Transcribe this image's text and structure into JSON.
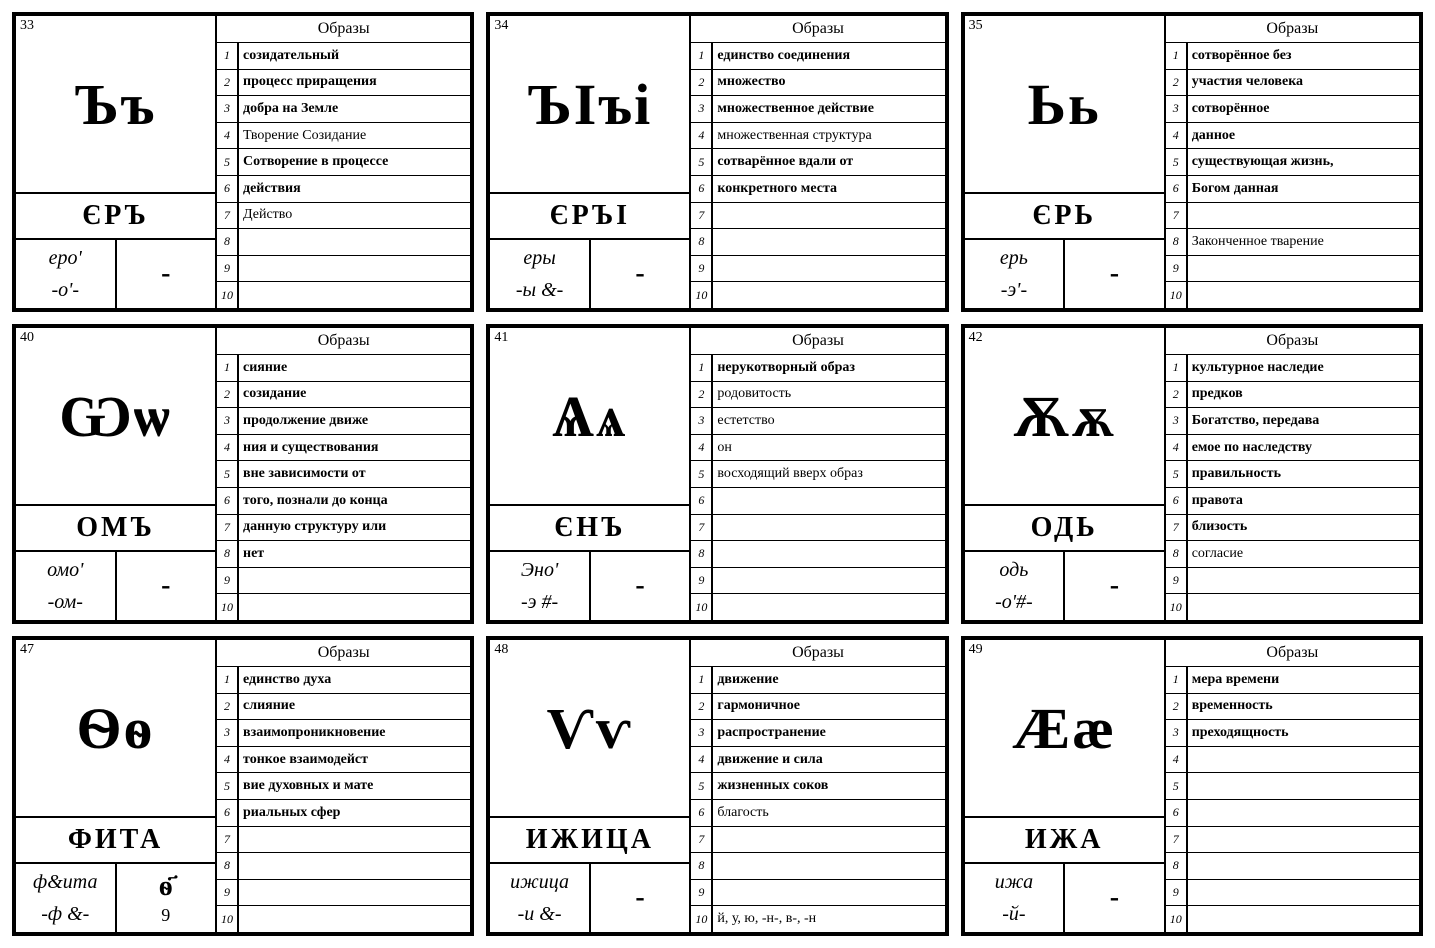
{
  "header_label": "Образы",
  "cards": [
    {
      "num": "33",
      "glyph": "Ъъ",
      "name": "ЄРЪ",
      "trans1": "еро'",
      "trans2": "-о'-",
      "numeral": "-",
      "numeral_sub": "",
      "meanings": [
        {
          "t": "созидательный",
          "b": true
        },
        {
          "t": "процесс приращения",
          "b": true
        },
        {
          "t": "добра на Земле",
          "b": true
        },
        {
          "t": "Творение Созидание",
          "b": false
        },
        {
          "t": "Сотворение в процессе",
          "b": true
        },
        {
          "t": "действия",
          "b": true
        },
        {
          "t": "Действо",
          "b": false
        },
        {
          "t": "",
          "b": false
        },
        {
          "t": "",
          "b": false
        },
        {
          "t": "",
          "b": false
        }
      ]
    },
    {
      "num": "34",
      "glyph": "ЪІъі",
      "name": "ЄРЪІ",
      "trans1": "еры",
      "trans2": "-ы &-",
      "numeral": "-",
      "numeral_sub": "",
      "meanings": [
        {
          "t": "единство соединения",
          "b": true
        },
        {
          "t": "множество",
          "b": true
        },
        {
          "t": "множественное действие",
          "b": true
        },
        {
          "t": "множественная структура",
          "b": false
        },
        {
          "t": "сотварённое вдали от",
          "b": true
        },
        {
          "t": "конкретного места",
          "b": true
        },
        {
          "t": "",
          "b": false
        },
        {
          "t": "",
          "b": false
        },
        {
          "t": "",
          "b": false
        },
        {
          "t": "",
          "b": false
        }
      ]
    },
    {
      "num": "35",
      "glyph": "Ьь",
      "name": "ЄРЬ",
      "trans1": "ерь",
      "trans2": "-э'-",
      "numeral": "-",
      "numeral_sub": "",
      "meanings": [
        {
          "t": "сотворённое без",
          "b": true
        },
        {
          "t": "участия человека",
          "b": true
        },
        {
          "t": "сотворённое",
          "b": true
        },
        {
          "t": "данное",
          "b": true
        },
        {
          "t": "существующая жизнь,",
          "b": true
        },
        {
          "t": "Богом данная",
          "b": true
        },
        {
          "t": "",
          "b": false
        },
        {
          "t": "Законченное тварение",
          "b": false
        },
        {
          "t": "",
          "b": false
        },
        {
          "t": "",
          "b": false
        }
      ]
    },
    {
      "num": "40",
      "glyph": "Ѡѡ",
      "name": "ОМЪ",
      "trans1": "омо'",
      "trans2": "-ом-",
      "numeral": "-",
      "numeral_sub": "",
      "meanings": [
        {
          "t": "сияние",
          "b": true
        },
        {
          "t": "созидание",
          "b": true
        },
        {
          "t": "продолжение движе",
          "b": true
        },
        {
          "t": "ния и существования",
          "b": true
        },
        {
          "t": "вне зависимости от",
          "b": true
        },
        {
          "t": "того, познали до конца",
          "b": true
        },
        {
          "t": "данную структуру или",
          "b": true
        },
        {
          "t": "нет",
          "b": true
        },
        {
          "t": "",
          "b": false
        },
        {
          "t": "",
          "b": false
        }
      ]
    },
    {
      "num": "41",
      "glyph": "Ѧѧ",
      "name": "ЄНЪ",
      "trans1": "Эно'",
      "trans2": "-э #-",
      "numeral": "-",
      "numeral_sub": "",
      "meanings": [
        {
          "t": "нерукотворный образ",
          "b": true
        },
        {
          "t": "родовитость",
          "b": false
        },
        {
          "t": "естетство",
          "b": false
        },
        {
          "t": "он",
          "b": false
        },
        {
          "t": "восходящий вверх образ",
          "b": false
        },
        {
          "t": "",
          "b": false
        },
        {
          "t": "",
          "b": false
        },
        {
          "t": "",
          "b": false
        },
        {
          "t": "",
          "b": false
        },
        {
          "t": "",
          "b": false
        }
      ]
    },
    {
      "num": "42",
      "glyph": "Ѫѫ",
      "name": "ОДЬ",
      "trans1": "одь",
      "trans2": "-о'#-",
      "numeral": "-",
      "numeral_sub": "",
      "meanings": [
        {
          "t": "культурное наследие",
          "b": true
        },
        {
          "t": "предков",
          "b": true
        },
        {
          "t": "Богатство, передава",
          "b": true
        },
        {
          "t": "емое по наследству",
          "b": true
        },
        {
          "t": "правильность",
          "b": true
        },
        {
          "t": "правота",
          "b": true
        },
        {
          "t": "близость",
          "b": true
        },
        {
          "t": "согласие",
          "b": false
        },
        {
          "t": "",
          "b": false
        },
        {
          "t": "",
          "b": false
        }
      ]
    },
    {
      "num": "47",
      "glyph": "Ѳѳ",
      "name": "ФИТА",
      "trans1": "ф&ита",
      "trans2": "-ф &-",
      "numeral": "ѳ҃",
      "numeral_sub": "9",
      "meanings": [
        {
          "t": "единство духа",
          "b": true
        },
        {
          "t": "слияние",
          "b": true
        },
        {
          "t": "взаимопроникновение",
          "b": true
        },
        {
          "t": " тонкое взаимодейст",
          "b": true
        },
        {
          "t": "вие духовных и мате",
          "b": true
        },
        {
          "t": "риальных сфер",
          "b": true
        },
        {
          "t": "",
          "b": false
        },
        {
          "t": "",
          "b": false
        },
        {
          "t": "",
          "b": false
        },
        {
          "t": "",
          "b": false
        }
      ]
    },
    {
      "num": "48",
      "glyph": "Ѵѵ",
      "name": "ИЖИЦА",
      "trans1": "ижица",
      "trans2": "-и &-",
      "numeral": "-",
      "numeral_sub": "",
      "meanings": [
        {
          "t": "движение",
          "b": true
        },
        {
          "t": "гармоничное",
          "b": true
        },
        {
          "t": "распространение",
          "b": true
        },
        {
          "t": "движение и сила",
          "b": true
        },
        {
          "t": "жизненных соков",
          "b": true
        },
        {
          "t": "благость",
          "b": false
        },
        {
          "t": "",
          "b": false
        },
        {
          "t": "",
          "b": false
        },
        {
          "t": "",
          "b": false
        },
        {
          "t": "й, у, ю, -н-, в-, -н",
          "b": false
        }
      ]
    },
    {
      "num": "49",
      "glyph": "Ӕӕ",
      "name": "ИЖА",
      "trans1": "ижа",
      "trans2": "-й-",
      "numeral": "-",
      "numeral_sub": "",
      "meanings": [
        {
          "t": "мера времени",
          "b": true
        },
        {
          "t": "временность",
          "b": true
        },
        {
          "t": "преходящность",
          "b": true
        },
        {
          "t": "",
          "b": false
        },
        {
          "t": "",
          "b": false
        },
        {
          "t": "",
          "b": false
        },
        {
          "t": "",
          "b": false
        },
        {
          "t": "",
          "b": false
        },
        {
          "t": "",
          "b": false
        },
        {
          "t": "",
          "b": false
        }
      ]
    }
  ]
}
